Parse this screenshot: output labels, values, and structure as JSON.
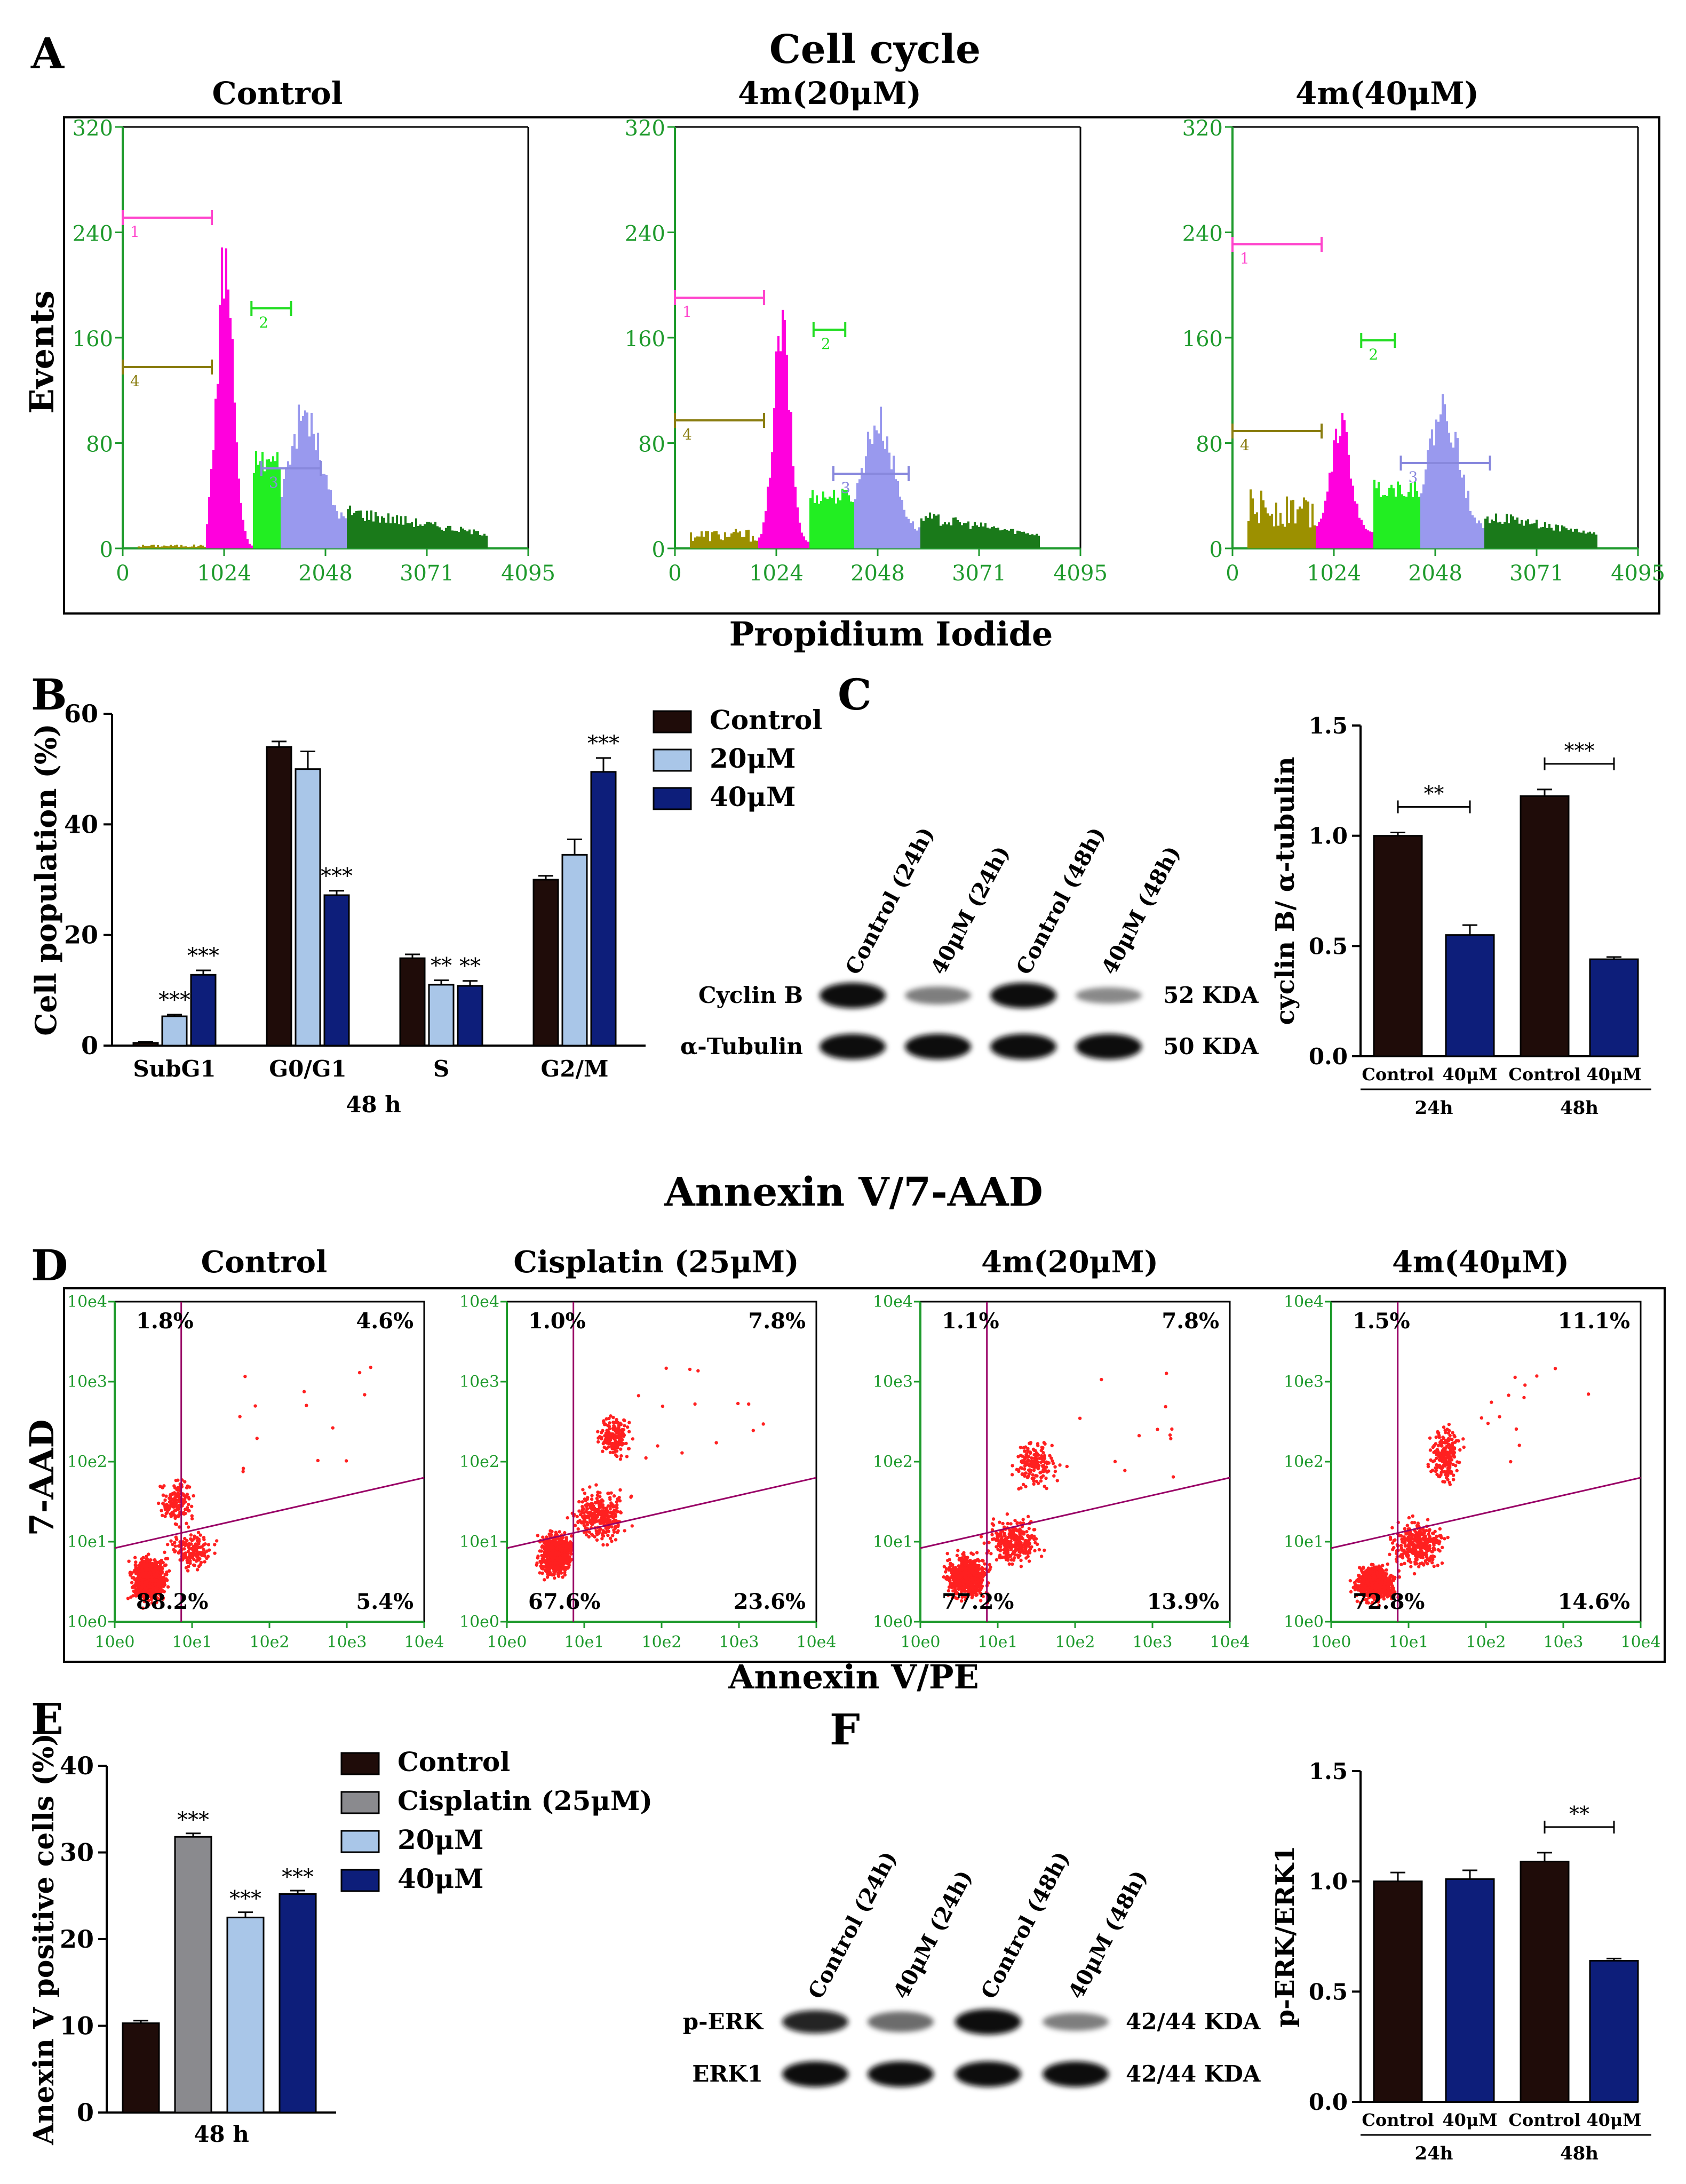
{
  "panels": {
    "A": {
      "letter": "A",
      "title": "Cell cycle",
      "ylabel": "Events",
      "xlabel": "Propidium Iodide",
      "xticks": [
        "0",
        "1024",
        "2048",
        "3071",
        "4095"
      ],
      "yticks": [
        "0",
        "80",
        "160",
        "240",
        "320"
      ],
      "marker_labels": [
        "1",
        "2",
        "3",
        "4"
      ],
      "subplots": [
        {
          "title": "Control"
        },
        {
          "title": "4m(20μM)"
        },
        {
          "title": "4m(40μM)"
        }
      ]
    },
    "B": {
      "letter": "B"
    },
    "C": {
      "letter": "C",
      "lanes": [
        "Control (24h)",
        "40μM (24h)",
        "Control (48h)",
        "40μM (48h)"
      ],
      "rows": [
        {
          "label": "Cyclin B",
          "kda": "52 KDA"
        },
        {
          "label": "α-Tubulin",
          "kda": "50 KDA"
        }
      ]
    },
    "D": {
      "letter": "D",
      "title": "Annexin V/7-AAD",
      "ylabel": "7-AAD",
      "xlabel": "Annexin V/PE",
      "ticks": [
        "10e0",
        "10e1",
        "10e2",
        "10e3",
        "10e4"
      ],
      "yticks": [
        "10e0",
        "10e1",
        "10e2",
        "10e3",
        "10e4"
      ],
      "subplots": [
        {
          "title": "Control",
          "ul": "1.8%",
          "ur": "4.6%",
          "ll": "88.2%",
          "lr": "5.4%"
        },
        {
          "title": "Cisplatin (25μM)",
          "ul": "1.0%",
          "ur": "7.8%",
          "ll": "67.6%",
          "lr": "23.6%"
        },
        {
          "title": "4m(20μM)",
          "ul": "1.1%",
          "ur": "7.8%",
          "ll": "77.2%",
          "lr": "13.9%"
        },
        {
          "title": "4m(40μM)",
          "ul": "1.5%",
          "ur": "11.1%",
          "ll": "72.8%",
          "lr": "14.6%"
        }
      ]
    },
    "E": {
      "letter": "E"
    },
    "F": {
      "letter": "F",
      "lanes": [
        "Control (24h)",
        "40μM (24h)",
        "Control (48h)",
        "40μM (48h)"
      ],
      "rows": [
        {
          "label": "p-ERK",
          "kda": "42/44 KDA"
        },
        {
          "label": "ERK1",
          "kda": "42/44 KDA"
        }
      ]
    }
  },
  "colors": {
    "control": "#1f0c09",
    "cisplatin": "#8a8a8e",
    "c20": "#a9c6e8",
    "c40": "#0d1e7a",
    "flow_axis": "#1e9a2c",
    "scatter": "#ff2020",
    "gate": "#990066",
    "g1": "#ff00dd",
    "s": "#22ee22",
    "g2": "#9999ee",
    "debris": "#9c9000",
    "tail": "#1a7a1a"
  },
  "chart_data": [
    {
      "id": "B",
      "type": "bar",
      "categories": [
        "SubG1",
        "G0/G1",
        "S",
        "G2/M"
      ],
      "series": [
        {
          "name": "Control",
          "values": [
            0.5,
            54,
            15.8,
            30
          ],
          "errors": [
            0.2,
            1.0,
            0.7,
            0.7
          ],
          "sig": [
            "",
            "",
            "",
            ""
          ]
        },
        {
          "name": "20μM",
          "values": [
            5.3,
            50,
            11,
            34.5
          ],
          "errors": [
            0.3,
            3.2,
            0.8,
            2.8
          ],
          "sig": [
            "***",
            "",
            "**",
            ""
          ]
        },
        {
          "name": "40μM",
          "values": [
            12.8,
            27.2,
            10.8,
            49.5
          ],
          "errors": [
            0.8,
            0.8,
            0.9,
            2.5
          ],
          "sig": [
            "***",
            "***",
            "**",
            "***"
          ]
        }
      ],
      "ylim": [
        0,
        60
      ],
      "yticks": [
        0,
        20,
        40,
        60
      ],
      "ylabel": "Cell population (%)",
      "xlabel": "48 h",
      "legend": "top-right"
    },
    {
      "id": "C",
      "type": "bar",
      "categories": [
        "Control",
        "40μM",
        "Control",
        "40μM"
      ],
      "values": [
        1.0,
        0.55,
        1.18,
        0.44
      ],
      "errors": [
        0.015,
        0.045,
        0.03,
        0.01
      ],
      "groups": [
        "24h",
        "48h"
      ],
      "brackets": [
        {
          "from": 0,
          "to": 1,
          "label": "**"
        },
        {
          "from": 2,
          "to": 3,
          "label": "***"
        }
      ],
      "ylim": [
        0,
        1.5
      ],
      "yticks": [
        "0.0",
        "0.5",
        "1.0",
        "1.5"
      ],
      "ylabel": "cyclin B/ α-tubulin"
    },
    {
      "id": "E",
      "type": "bar",
      "categories": [
        "Control",
        "Cisplatin (25μM)",
        "20μM",
        "40μM"
      ],
      "values": [
        10.3,
        31.8,
        22.5,
        25.2
      ],
      "errors": [
        0.3,
        0.4,
        0.6,
        0.4
      ],
      "sig": [
        "",
        "***",
        "***",
        "***"
      ],
      "ylim": [
        0,
        40
      ],
      "yticks": [
        0,
        10,
        20,
        30,
        40
      ],
      "ylabel": "Anexin V positive cells (%)",
      "xlabel": "48 h",
      "legend": "top-right"
    },
    {
      "id": "F",
      "type": "bar",
      "categories": [
        "Control",
        "40μM",
        "Control",
        "40μM"
      ],
      "values": [
        1.0,
        1.01,
        1.09,
        0.64
      ],
      "errors": [
        0.04,
        0.04,
        0.04,
        0.01
      ],
      "groups": [
        "24h",
        "48h"
      ],
      "brackets": [
        {
          "from": 2,
          "to": 3,
          "label": "**"
        }
      ],
      "ylim": [
        0,
        1.5
      ],
      "yticks": [
        "0.0",
        "0.5",
        "1.0",
        "1.5"
      ],
      "ylabel": "p-ERK/ERK1"
    }
  ]
}
